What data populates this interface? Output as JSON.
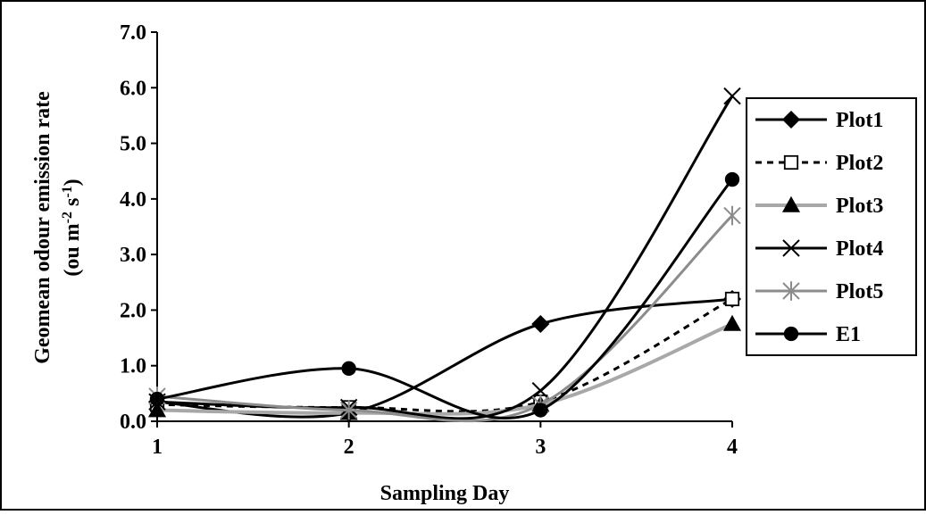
{
  "chart_data": {
    "type": "line",
    "title": "",
    "xlabel": "Sampling Day",
    "ylabel": {
      "main": "Geomean odour emission rate",
      "unit_open": "(ou m",
      "unit_exp1": "-2",
      "unit_mid": " s",
      "unit_exp2": "-1",
      "unit_close": ")"
    },
    "x": [
      1,
      2,
      3,
      4
    ],
    "x_tick_labels": [
      "1",
      "2",
      "3",
      "4"
    ],
    "ylim": [
      0,
      7
    ],
    "y_ticks": [
      0,
      1,
      2,
      3,
      4,
      5,
      6,
      7
    ],
    "y_tick_labels": [
      "0.0",
      "1.0",
      "2.0",
      "3.0",
      "4.0",
      "5.0",
      "6.0",
      "7.0"
    ],
    "grid": false,
    "legend_position": "right",
    "series": [
      {
        "name": "Plot1",
        "values": [
          0.35,
          0.15,
          1.75,
          2.2
        ],
        "color": "#000000",
        "dash": "solid",
        "marker": "diamond",
        "marker_fill": "#000000"
      },
      {
        "name": "Plot2",
        "values": [
          0.3,
          0.25,
          0.35,
          2.2
        ],
        "color": "#000000",
        "dash": "dashed",
        "marker": "square",
        "marker_fill": "#ffffff"
      },
      {
        "name": "Plot3",
        "values": [
          0.2,
          0.15,
          0.3,
          1.75
        ],
        "color": "#a8a8a8",
        "dash": "solid",
        "marker": "triangle",
        "marker_fill": "#000000"
      },
      {
        "name": "Plot4",
        "values": [
          0.35,
          0.25,
          0.55,
          5.85
        ],
        "color": "#000000",
        "dash": "solid",
        "marker": "x",
        "marker_fill": "#000000"
      },
      {
        "name": "Plot5",
        "values": [
          0.45,
          0.2,
          0.3,
          3.7
        ],
        "color": "#8c8c8c",
        "dash": "solid",
        "marker": "star",
        "marker_fill": "#8c8c8c"
      },
      {
        "name": "E1",
        "values": [
          0.4,
          0.95,
          0.2,
          4.35
        ],
        "color": "#000000",
        "dash": "solid",
        "marker": "circle",
        "marker_fill": "#000000"
      }
    ]
  }
}
